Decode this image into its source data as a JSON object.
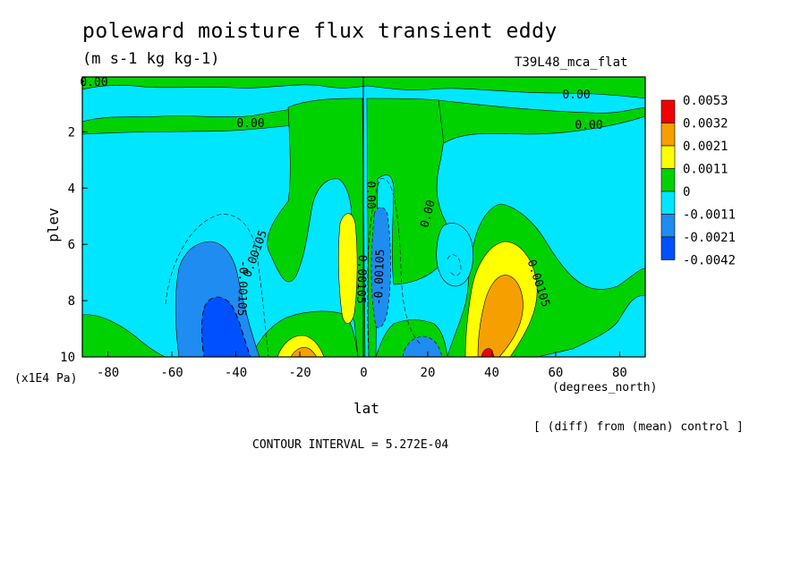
{
  "title": "poleward moisture flux transient eddy",
  "units": "(m s-1 kg kg-1)",
  "run_label": "T39L48_mca_flat",
  "xlabel": "lat",
  "xunit": "(degrees_north)",
  "ylabel": "plev",
  "yunit": "(x1E4 Pa)",
  "diff_note": "[ (diff) from (mean) control ]",
  "contour_interval": "CONTOUR INTERVAL = 5.272E-04",
  "contour_labels": [
    "0.00",
    "0.00",
    "0.00",
    "0.00",
    "0.00",
    "0.00",
    "-0.00105",
    "0.00105",
    "-0.00105",
    "0.00105",
    "0.00105"
  ],
  "colors": {
    "red": "#f00000",
    "orange": "#f5a000",
    "yellow": "#ffff00",
    "green": "#00d200",
    "cyan": "#00e6ff",
    "blue": "#1e8cf0",
    "darkblue": "#0050ff"
  },
  "chart_data": {
    "type": "heatmap",
    "x_ticks": [
      "-80",
      "-60",
      "-40",
      "-20",
      "0",
      "20",
      "40",
      "60",
      "80"
    ],
    "y_ticks": [
      "2",
      "4",
      "6",
      "8",
      "10"
    ],
    "xlim": [
      -88,
      88
    ],
    "ylim": [
      10,
      0.05
    ],
    "colorbar": {
      "labels": [
        "0.0053",
        "0.0032",
        "0.0021",
        "0.0011",
        "0",
        "-0.0011",
        "-0.0021",
        "-0.0042"
      ],
      "colors": [
        "#f00000",
        "#f5a000",
        "#ffff00",
        "#00d200",
        "#00e6ff",
        "#1e8cf0",
        "#0050ff"
      ]
    }
  }
}
